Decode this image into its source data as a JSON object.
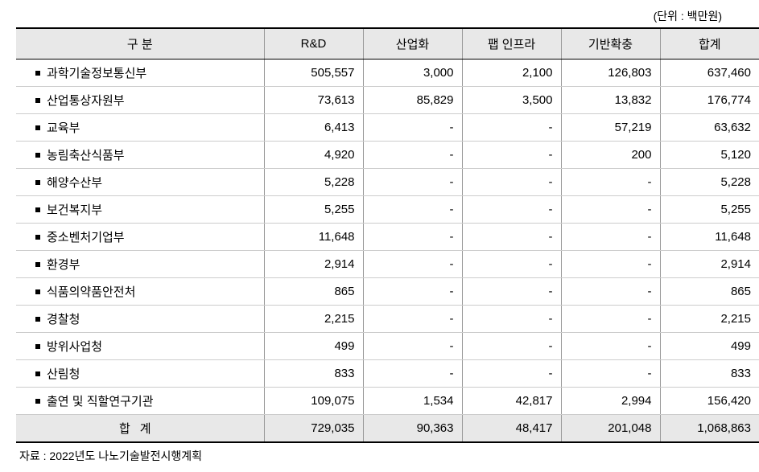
{
  "unit_label": "(단위 : 백만원)",
  "table": {
    "columns": [
      "구 분",
      "R&D",
      "산업화",
      "팹 인프라",
      "기반확충",
      "합계"
    ],
    "rows": [
      {
        "label": "과학기술정보통신부",
        "values": [
          "505,557",
          "3,000",
          "2,100",
          "126,803",
          "637,460"
        ]
      },
      {
        "label": "산업통상자원부",
        "values": [
          "73,613",
          "85,829",
          "3,500",
          "13,832",
          "176,774"
        ]
      },
      {
        "label": "교육부",
        "values": [
          "6,413",
          "-",
          "-",
          "57,219",
          "63,632"
        ]
      },
      {
        "label": "농림축산식품부",
        "values": [
          "4,920",
          "-",
          "-",
          "200",
          "5,120"
        ]
      },
      {
        "label": "해양수산부",
        "values": [
          "5,228",
          "-",
          "-",
          "-",
          "5,228"
        ]
      },
      {
        "label": "보건복지부",
        "values": [
          "5,255",
          "-",
          "-",
          "-",
          "5,255"
        ]
      },
      {
        "label": "중소벤처기업부",
        "values": [
          "11,648",
          "-",
          "-",
          "-",
          "11,648"
        ]
      },
      {
        "label": "환경부",
        "values": [
          "2,914",
          "-",
          "-",
          "-",
          "2,914"
        ]
      },
      {
        "label": "식품의약품안전처",
        "values": [
          "865",
          "-",
          "-",
          "-",
          "865"
        ]
      },
      {
        "label": "경찰청",
        "values": [
          "2,215",
          "-",
          "-",
          "-",
          "2,215"
        ]
      },
      {
        "label": "방위사업청",
        "values": [
          "499",
          "-",
          "-",
          "-",
          "499"
        ]
      },
      {
        "label": "산림청",
        "values": [
          "833",
          "-",
          "-",
          "-",
          "833"
        ]
      },
      {
        "label": "출연 및 직할연구기관",
        "values": [
          "109,075",
          "1,534",
          "42,817",
          "2,994",
          "156,420"
        ]
      }
    ],
    "total": {
      "label": "합계",
      "values": [
        "729,035",
        "90,363",
        "48,417",
        "201,048",
        "1,068,863"
      ]
    }
  },
  "source_note": "자료 : 2022년도 나노기술발전시행계획",
  "styling": {
    "header_bg": "#e8e8e8",
    "total_bg": "#e8e8e8",
    "border_thick": "#000000",
    "border_thin": "#999999",
    "border_row": "#cccccc",
    "font_size_body": 15,
    "font_size_meta": 14,
    "bullet_size": 6,
    "col_widths": {
      "category": 308,
      "data": 123
    }
  }
}
